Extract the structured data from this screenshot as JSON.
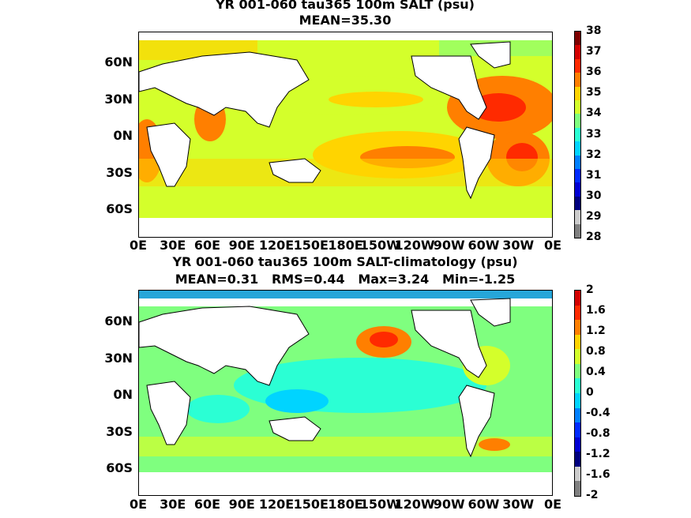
{
  "panels": [
    {
      "title_line1": "YR 001-060 tau365 100m SALT (psu)",
      "title_line2": "MEAN=35.30",
      "colorbar_ticks": [
        "38",
        "37",
        "36",
        "35",
        "34",
        "33",
        "32",
        "31",
        "30",
        "29",
        "28"
      ],
      "colorbar_colors": [
        "#7f0000",
        "#d40000",
        "#ff2a00",
        "#ff7f00",
        "#ffd400",
        "#d4ff2b",
        "#7fff7f",
        "#2bffd4",
        "#00d4ff",
        "#0080ff",
        "#002bff",
        "#0000d4",
        "#00007f",
        "#cccccc",
        "#808080"
      ]
    },
    {
      "title_line1": "YR 001-060 tau365 100m SALT-climatology (psu)",
      "title_line2": "MEAN=0.31   RMS=0.44   Max=3.24   Min=-1.25",
      "colorbar_ticks": [
        "2",
        "1.6",
        "1.2",
        "0.8",
        "0.4",
        "0",
        "-0.4",
        "-0.8",
        "-1.2",
        "-1.6",
        "-2"
      ],
      "colorbar_colors": [
        "#d40000",
        "#ff2a00",
        "#ff7f00",
        "#ffd400",
        "#d4ff2b",
        "#7fff7f",
        "#2bffd4",
        "#00d4ff",
        "#0080ff",
        "#002bff",
        "#0000d4",
        "#00007f",
        "#cccccc",
        "#808080"
      ]
    }
  ],
  "lat_labels": [
    "60N",
    "30N",
    "0N",
    "30S",
    "60S"
  ],
  "lon_labels": [
    "0E",
    "30E",
    "60E",
    "90E",
    "120E",
    "150E",
    "180E",
    "150W",
    "120W",
    "90W",
    "60W",
    "30W",
    "0E"
  ]
}
